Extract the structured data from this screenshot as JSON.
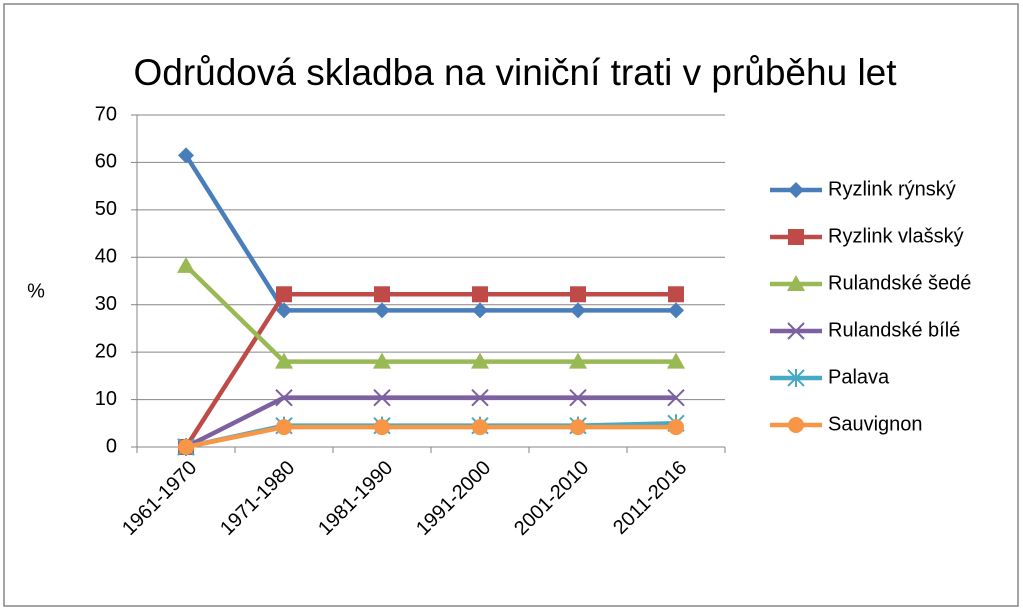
{
  "chart_data": {
    "type": "line",
    "title": "Odrůdová skladba na viniční trati v průběhu let",
    "y_label": "%",
    "categories": [
      "1961-1970",
      "1971-1980",
      "1981-1990",
      "1991-2000",
      "2001-2010",
      "2011-2016"
    ],
    "series": [
      {
        "name": "Ryzlink rýnský",
        "color": "#4a7ebb",
        "marker": "diamond",
        "values": [
          61.5,
          28.8,
          28.8,
          28.8,
          28.8,
          28.8
        ]
      },
      {
        "name": "Ryzlink vlašský",
        "color": "#be4b48",
        "marker": "square",
        "values": [
          0,
          32.2,
          32.2,
          32.2,
          32.2,
          32.2
        ]
      },
      {
        "name": "Rulandské šedé",
        "color": "#98b954",
        "marker": "triangle",
        "values": [
          38.2,
          18,
          18,
          18,
          18,
          18
        ]
      },
      {
        "name": "Rulandské bílé",
        "color": "#7d60a0",
        "marker": "x",
        "values": [
          0,
          10.4,
          10.4,
          10.4,
          10.4,
          10.4
        ]
      },
      {
        "name": "Palava",
        "color": "#46aac5",
        "marker": "star",
        "values": [
          0,
          4.5,
          4.5,
          4.5,
          4.5,
          5
        ]
      },
      {
        "name": "Sauvignon",
        "color": "#f79646",
        "marker": "circle",
        "values": [
          0,
          4.2,
          4.2,
          4.2,
          4.2,
          4.2
        ]
      }
    ],
    "ylim": [
      0,
      70
    ],
    "yticks": [
      0,
      10,
      20,
      30,
      40,
      50,
      60,
      70
    ],
    "grid": true,
    "legend": "right"
  }
}
